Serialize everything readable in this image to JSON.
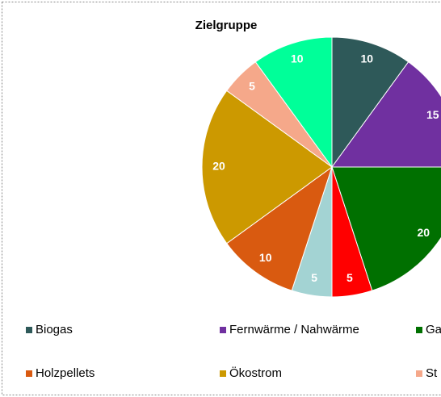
{
  "chart_data": {
    "type": "pie",
    "title": "Zielgruppe",
    "categories": [
      "Biogas",
      "Fernwärme / Nahwärme",
      "Ga",
      null,
      null,
      "Holzpellets",
      "Ökostrom",
      "St",
      null
    ],
    "values": [
      10,
      15,
      20,
      5,
      5,
      10,
      20,
      5,
      10
    ],
    "colors": [
      "#2e5959",
      "#7030a0",
      "#007000",
      "#ff0000",
      "#a3d3d3",
      "#d95a10",
      "#cc9900",
      "#f5a88a",
      "#00ff99"
    ]
  }
}
